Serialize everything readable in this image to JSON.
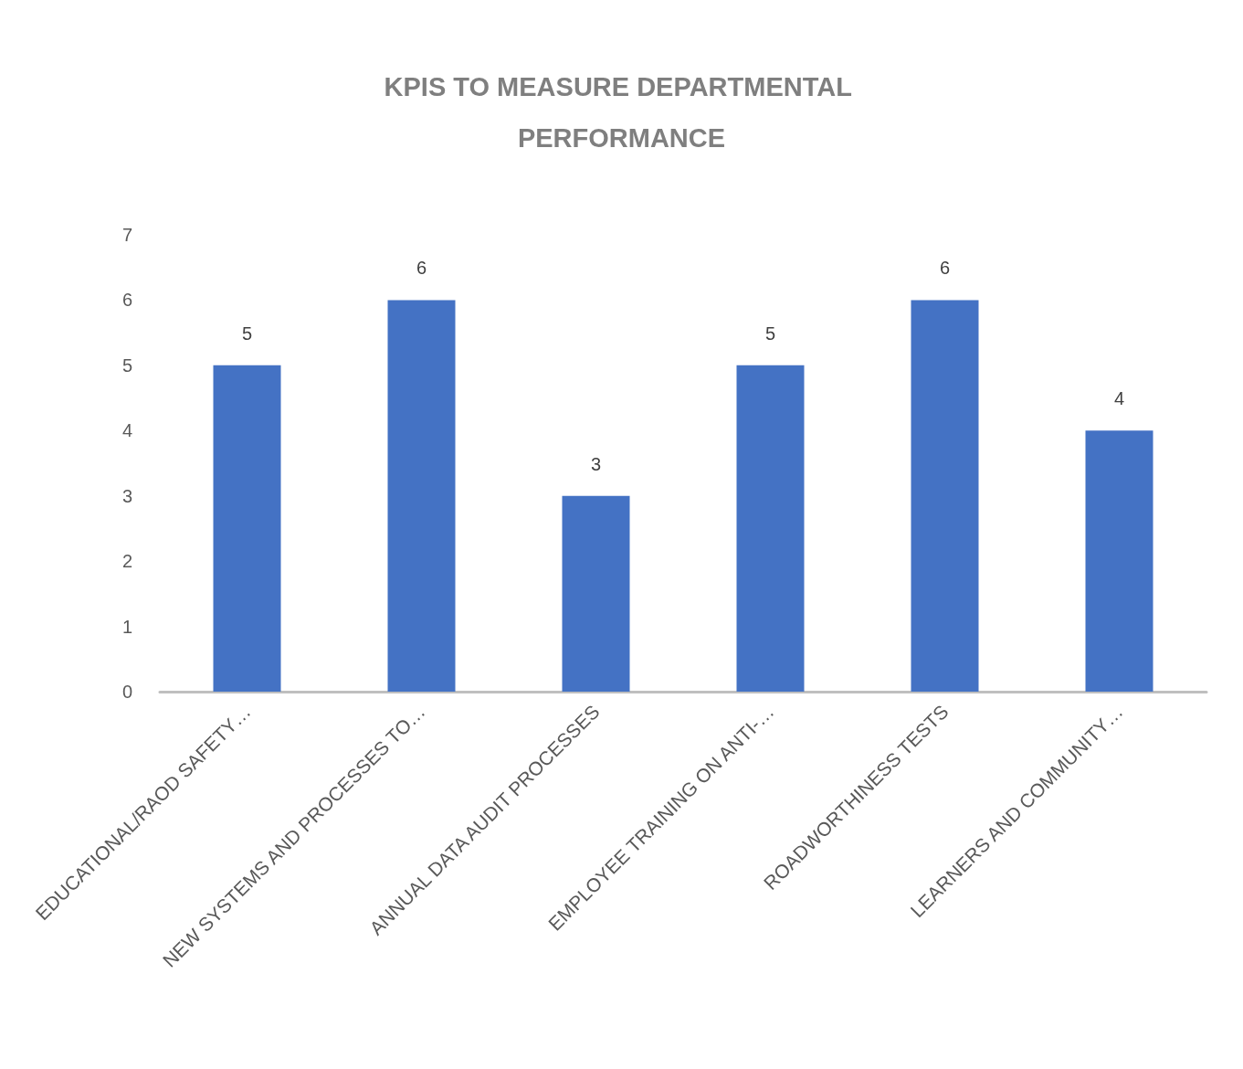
{
  "chart_data": {
    "type": "bar",
    "title": "KPIS TO MEASURE DEPARTMENTAL PERFORMANCE",
    "categories": [
      "EDUCATIONAL/RAOD SAFETY…",
      "NEW SYSTEMS AND PROCESSES TO…",
      "ANNUAL DATA AUDIT PROCESSES",
      "EMPLOYEE TRAINING ON ANTI-…",
      "ROADWORTHINESS TESTS",
      "LEARNERS AND COMMUNITY…"
    ],
    "values": [
      5,
      6,
      3,
      5,
      6,
      4
    ],
    "color": "#4472c4",
    "ylim": [
      0,
      7
    ],
    "yticks": [
      0,
      1,
      2,
      3,
      4,
      5,
      6,
      7
    ],
    "grid": false,
    "data_labels": true
  }
}
